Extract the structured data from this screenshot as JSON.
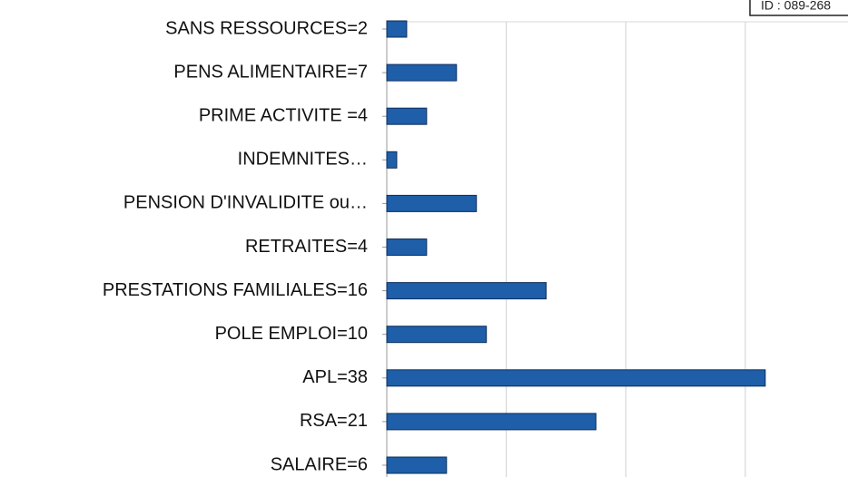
{
  "chart_data": {
    "type": "barh",
    "categories": [
      "SANS RESSOURCES=2",
      "PENS ALIMENTAIRE=7",
      "PRIME ACTIVITE =4",
      "INDEMNITES…",
      "PENSION D'INVALIDITE ou…",
      "RETRAITES=4",
      "PRESTATIONS FAMILIALES=16",
      "POLE EMPLOI=10",
      "APL=38",
      "RSA=21",
      "SALAIRE=6"
    ],
    "values": [
      2,
      7,
      4,
      1,
      9,
      4,
      16,
      10,
      38,
      21,
      6
    ],
    "color": "#1f5ea8",
    "xlim": [
      0,
      46
    ],
    "xticks": [
      12,
      24,
      36
    ],
    "grid": true
  },
  "annotation": "ID : 089-268"
}
